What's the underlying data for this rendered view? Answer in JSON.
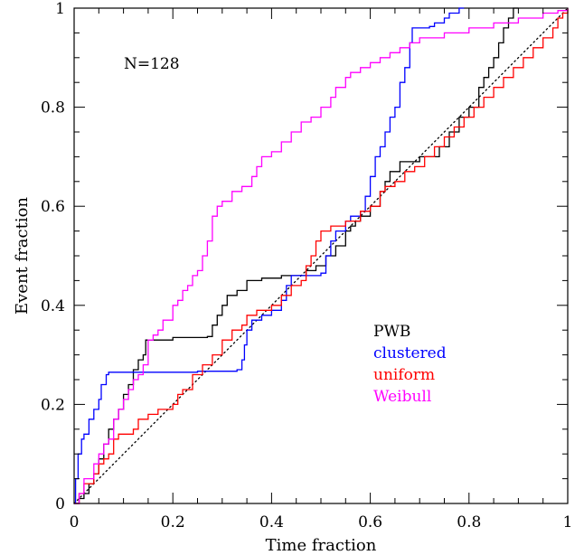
{
  "chart_data": {
    "type": "line",
    "xlabel": "Time fraction",
    "ylabel": "Event fraction",
    "annotation": "N=128",
    "xlim": [
      0,
      1
    ],
    "ylim": [
      0,
      1
    ],
    "x_ticks": [
      "0",
      "0.2",
      "0.4",
      "0.6",
      "0.8",
      "1"
    ],
    "y_ticks": [
      "0",
      "0.2",
      "0.4",
      "0.6",
      "0.8",
      "1"
    ],
    "grid": false,
    "legend_position": "lower-right",
    "reference_line": {
      "style": "dotted",
      "points": [
        [
          0,
          0
        ],
        [
          1,
          1
        ]
      ]
    },
    "series": [
      {
        "name": "PWB",
        "color": "#000000",
        "points": [
          [
            0,
            0
          ],
          [
            0.01,
            0.01
          ],
          [
            0.02,
            0.02
          ],
          [
            0.03,
            0.04
          ],
          [
            0.04,
            0.06
          ],
          [
            0.05,
            0.09
          ],
          [
            0.06,
            0.12
          ],
          [
            0.07,
            0.15
          ],
          [
            0.08,
            0.17
          ],
          [
            0.09,
            0.19
          ],
          [
            0.1,
            0.22
          ],
          [
            0.11,
            0.24
          ],
          [
            0.12,
            0.27
          ],
          [
            0.13,
            0.29
          ],
          [
            0.14,
            0.3
          ],
          [
            0.145,
            0.33
          ],
          [
            0.2,
            0.335
          ],
          [
            0.27,
            0.337
          ],
          [
            0.28,
            0.36
          ],
          [
            0.29,
            0.38
          ],
          [
            0.3,
            0.4
          ],
          [
            0.31,
            0.42
          ],
          [
            0.33,
            0.43
          ],
          [
            0.35,
            0.45
          ],
          [
            0.38,
            0.455
          ],
          [
            0.42,
            0.46
          ],
          [
            0.47,
            0.47
          ],
          [
            0.49,
            0.48
          ],
          [
            0.51,
            0.5
          ],
          [
            0.53,
            0.52
          ],
          [
            0.55,
            0.55
          ],
          [
            0.56,
            0.56
          ],
          [
            0.57,
            0.57
          ],
          [
            0.58,
            0.58
          ],
          [
            0.6,
            0.6
          ],
          [
            0.62,
            0.63
          ],
          [
            0.63,
            0.65
          ],
          [
            0.64,
            0.67
          ],
          [
            0.66,
            0.69
          ],
          [
            0.7,
            0.7
          ],
          [
            0.72,
            0.7
          ],
          [
            0.74,
            0.72
          ],
          [
            0.76,
            0.75
          ],
          [
            0.78,
            0.78
          ],
          [
            0.8,
            0.8
          ],
          [
            0.82,
            0.84
          ],
          [
            0.83,
            0.86
          ],
          [
            0.84,
            0.88
          ],
          [
            0.85,
            0.9
          ],
          [
            0.86,
            0.93
          ],
          [
            0.87,
            0.96
          ],
          [
            0.88,
            0.98
          ],
          [
            0.89,
            1.0
          ],
          [
            0.9,
            1.0
          ]
        ]
      },
      {
        "name": "clustered",
        "color": "#0000ff",
        "points": [
          [
            0,
            0
          ],
          [
            0.003,
            0.05
          ],
          [
            0.008,
            0.1
          ],
          [
            0.015,
            0.13
          ],
          [
            0.02,
            0.14
          ],
          [
            0.03,
            0.17
          ],
          [
            0.04,
            0.19
          ],
          [
            0.05,
            0.21
          ],
          [
            0.055,
            0.24
          ],
          [
            0.065,
            0.26
          ],
          [
            0.07,
            0.265
          ],
          [
            0.15,
            0.265
          ],
          [
            0.25,
            0.267
          ],
          [
            0.33,
            0.27
          ],
          [
            0.34,
            0.29
          ],
          [
            0.345,
            0.32
          ],
          [
            0.35,
            0.35
          ],
          [
            0.36,
            0.37
          ],
          [
            0.38,
            0.38
          ],
          [
            0.4,
            0.39
          ],
          [
            0.42,
            0.41
          ],
          [
            0.43,
            0.44
          ],
          [
            0.44,
            0.46
          ],
          [
            0.5,
            0.465
          ],
          [
            0.51,
            0.5
          ],
          [
            0.52,
            0.53
          ],
          [
            0.53,
            0.55
          ],
          [
            0.55,
            0.57
          ],
          [
            0.56,
            0.58
          ],
          [
            0.58,
            0.59
          ],
          [
            0.59,
            0.62
          ],
          [
            0.6,
            0.66
          ],
          [
            0.61,
            0.7
          ],
          [
            0.62,
            0.72
          ],
          [
            0.63,
            0.75
          ],
          [
            0.64,
            0.78
          ],
          [
            0.65,
            0.8
          ],
          [
            0.66,
            0.85
          ],
          [
            0.67,
            0.88
          ],
          [
            0.68,
            0.93
          ],
          [
            0.685,
            0.96
          ],
          [
            0.72,
            0.963
          ],
          [
            0.73,
            0.97
          ],
          [
            0.75,
            0.98
          ],
          [
            0.76,
            0.99
          ],
          [
            0.78,
            1.0
          ],
          [
            0.79,
            1.0
          ]
        ]
      },
      {
        "name": "uniform",
        "color": "#ff0000",
        "points": [
          [
            0,
            0
          ],
          [
            0.01,
            0.02
          ],
          [
            0.02,
            0.04
          ],
          [
            0.04,
            0.06
          ],
          [
            0.05,
            0.08
          ],
          [
            0.06,
            0.09
          ],
          [
            0.07,
            0.1
          ],
          [
            0.08,
            0.13
          ],
          [
            0.09,
            0.14
          ],
          [
            0.11,
            0.14
          ],
          [
            0.12,
            0.15
          ],
          [
            0.13,
            0.17
          ],
          [
            0.15,
            0.18
          ],
          [
            0.17,
            0.19
          ],
          [
            0.2,
            0.2
          ],
          [
            0.21,
            0.22
          ],
          [
            0.22,
            0.23
          ],
          [
            0.24,
            0.26
          ],
          [
            0.26,
            0.28
          ],
          [
            0.28,
            0.3
          ],
          [
            0.3,
            0.33
          ],
          [
            0.32,
            0.35
          ],
          [
            0.34,
            0.36
          ],
          [
            0.35,
            0.38
          ],
          [
            0.37,
            0.39
          ],
          [
            0.4,
            0.4
          ],
          [
            0.42,
            0.42
          ],
          [
            0.44,
            0.44
          ],
          [
            0.46,
            0.45
          ],
          [
            0.47,
            0.48
          ],
          [
            0.48,
            0.5
          ],
          [
            0.49,
            0.53
          ],
          [
            0.5,
            0.55
          ],
          [
            0.52,
            0.56
          ],
          [
            0.55,
            0.57
          ],
          [
            0.58,
            0.59
          ],
          [
            0.6,
            0.6
          ],
          [
            0.62,
            0.63
          ],
          [
            0.63,
            0.64
          ],
          [
            0.65,
            0.65
          ],
          [
            0.67,
            0.67
          ],
          [
            0.69,
            0.68
          ],
          [
            0.71,
            0.7
          ],
          [
            0.73,
            0.72
          ],
          [
            0.75,
            0.74
          ],
          [
            0.77,
            0.76
          ],
          [
            0.79,
            0.78
          ],
          [
            0.81,
            0.8
          ],
          [
            0.83,
            0.82
          ],
          [
            0.85,
            0.84
          ],
          [
            0.87,
            0.86
          ],
          [
            0.89,
            0.88
          ],
          [
            0.91,
            0.9
          ],
          [
            0.93,
            0.92
          ],
          [
            0.95,
            0.94
          ],
          [
            0.97,
            0.96
          ],
          [
            0.98,
            0.98
          ],
          [
            0.99,
            0.99
          ],
          [
            1.0,
            1.0
          ]
        ]
      },
      {
        "name": "Weibull",
        "color": "#ff00ff",
        "points": [
          [
            0,
            0
          ],
          [
            0.01,
            0.02
          ],
          [
            0.02,
            0.05
          ],
          [
            0.04,
            0.08
          ],
          [
            0.05,
            0.1
          ],
          [
            0.06,
            0.12
          ],
          [
            0.07,
            0.13
          ],
          [
            0.08,
            0.17
          ],
          [
            0.09,
            0.19
          ],
          [
            0.1,
            0.21
          ],
          [
            0.11,
            0.23
          ],
          [
            0.12,
            0.25
          ],
          [
            0.13,
            0.26
          ],
          [
            0.14,
            0.28
          ],
          [
            0.15,
            0.33
          ],
          [
            0.16,
            0.34
          ],
          [
            0.17,
            0.35
          ],
          [
            0.18,
            0.37
          ],
          [
            0.2,
            0.4
          ],
          [
            0.21,
            0.41
          ],
          [
            0.22,
            0.43
          ],
          [
            0.23,
            0.44
          ],
          [
            0.24,
            0.46
          ],
          [
            0.25,
            0.47
          ],
          [
            0.26,
            0.5
          ],
          [
            0.27,
            0.53
          ],
          [
            0.28,
            0.58
          ],
          [
            0.29,
            0.6
          ],
          [
            0.3,
            0.61
          ],
          [
            0.32,
            0.63
          ],
          [
            0.34,
            0.64
          ],
          [
            0.36,
            0.66
          ],
          [
            0.37,
            0.68
          ],
          [
            0.38,
            0.7
          ],
          [
            0.4,
            0.71
          ],
          [
            0.42,
            0.73
          ],
          [
            0.44,
            0.75
          ],
          [
            0.46,
            0.77
          ],
          [
            0.48,
            0.78
          ],
          [
            0.5,
            0.8
          ],
          [
            0.52,
            0.82
          ],
          [
            0.53,
            0.84
          ],
          [
            0.55,
            0.86
          ],
          [
            0.56,
            0.87
          ],
          [
            0.58,
            0.88
          ],
          [
            0.6,
            0.89
          ],
          [
            0.62,
            0.9
          ],
          [
            0.64,
            0.91
          ],
          [
            0.66,
            0.92
          ],
          [
            0.68,
            0.93
          ],
          [
            0.7,
            0.94
          ],
          [
            0.72,
            0.94
          ],
          [
            0.75,
            0.95
          ],
          [
            0.8,
            0.96
          ],
          [
            0.85,
            0.97
          ],
          [
            0.9,
            0.98
          ],
          [
            0.95,
            0.99
          ],
          [
            0.98,
            0.995
          ],
          [
            1.0,
            1.0
          ]
        ]
      }
    ]
  }
}
